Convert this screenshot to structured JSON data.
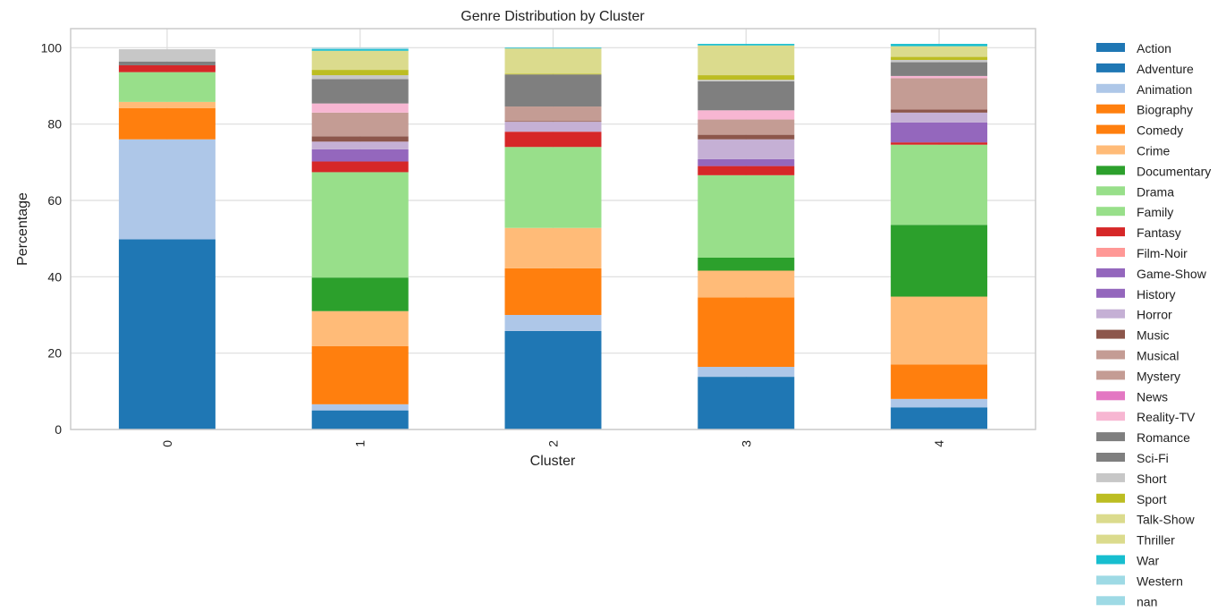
{
  "chart_data": {
    "type": "bar",
    "stacked": true,
    "title": "Genre Distribution by Cluster",
    "xlabel": "Cluster",
    "ylabel": "Percentage",
    "categories": [
      "0",
      "1",
      "2",
      "3",
      "4"
    ],
    "ylim": [
      0,
      105
    ],
    "yticks": [
      0,
      20,
      40,
      60,
      80,
      100
    ],
    "grid": true,
    "legend_position": "outside-right",
    "series": [
      {
        "name": "Action",
        "color": "#1f77b4",
        "values": [
          49.8,
          5.0,
          25.8,
          13.8,
          5.8
        ]
      },
      {
        "name": "Adventure",
        "color": "#1f77b4",
        "values": [
          0,
          0,
          0,
          0,
          0
        ]
      },
      {
        "name": "Animation",
        "color": "#aec7e8",
        "values": [
          26.2,
          1.6,
          4.2,
          2.6,
          2.2
        ]
      },
      {
        "name": "Biography",
        "color": "#ff7f0e",
        "values": [
          0,
          0,
          0,
          0,
          0
        ]
      },
      {
        "name": "Comedy",
        "color": "#ff7f0e",
        "values": [
          8.2,
          15.2,
          12.2,
          18.2,
          9.0
        ]
      },
      {
        "name": "Crime",
        "color": "#ffbb78",
        "values": [
          1.6,
          9.2,
          10.6,
          7.0,
          17.8
        ]
      },
      {
        "name": "Documentary",
        "color": "#2ca02c",
        "values": [
          0,
          8.8,
          0,
          3.4,
          18.8
        ]
      },
      {
        "name": "Drama",
        "color": "#98df8a",
        "values": [
          7.8,
          27.6,
          21.2,
          21.6,
          21.0
        ]
      },
      {
        "name": "Family",
        "color": "#98df8a",
        "values": [
          0,
          0,
          0,
          0,
          0
        ]
      },
      {
        "name": "Fantasy",
        "color": "#d62728",
        "values": [
          1.8,
          2.8,
          4.0,
          2.4,
          0.6
        ]
      },
      {
        "name": "Film-Noir",
        "color": "#ff9896",
        "values": [
          0,
          0,
          0,
          0,
          0
        ]
      },
      {
        "name": "Game-Show",
        "color": "#9467bd",
        "values": [
          0,
          0,
          0,
          0,
          0
        ]
      },
      {
        "name": "History",
        "color": "#9467bd",
        "values": [
          0,
          3.2,
          0,
          1.8,
          5.2
        ]
      },
      {
        "name": "Horror",
        "color": "#c5b0d5",
        "values": [
          0,
          2.0,
          2.6,
          5.2,
          2.6
        ]
      },
      {
        "name": "Music",
        "color": "#8c564b",
        "values": [
          0,
          1.4,
          0.2,
          1.2,
          0.8
        ]
      },
      {
        "name": "Musical",
        "color": "#c49c94",
        "values": [
          0,
          0,
          0,
          0,
          0
        ]
      },
      {
        "name": "Mystery",
        "color": "#c49c94",
        "values": [
          0,
          6.2,
          3.8,
          4.0,
          8.2
        ]
      },
      {
        "name": "News",
        "color": "#e377c2",
        "values": [
          0,
          0,
          0,
          0,
          0
        ]
      },
      {
        "name": "Reality-TV",
        "color": "#f7b6d2",
        "values": [
          0,
          2.4,
          0,
          2.4,
          0.6
        ]
      },
      {
        "name": "Romance",
        "color": "#7f7f7f",
        "values": [
          0,
          0,
          0,
          0,
          0
        ]
      },
      {
        "name": "Sci-Fi",
        "color": "#7f7f7f",
        "values": [
          1.0,
          6.4,
          8.4,
          7.6,
          3.6
        ]
      },
      {
        "name": "Short",
        "color": "#c7c7c7",
        "values": [
          3.2,
          1.0,
          0,
          0.4,
          0.6
        ]
      },
      {
        "name": "Sport",
        "color": "#bcbd22",
        "values": [
          0,
          1.4,
          0.2,
          1.2,
          0.8
        ]
      },
      {
        "name": "Talk-Show",
        "color": "#dbdb8d",
        "values": [
          0,
          0,
          0,
          0,
          0
        ]
      },
      {
        "name": "Thriller",
        "color": "#dbdb8d",
        "values": [
          0,
          5.0,
          6.6,
          7.8,
          2.8
        ]
      },
      {
        "name": "War",
        "color": "#17becf",
        "values": [
          0,
          0.4,
          0.2,
          0.4,
          0.6
        ]
      },
      {
        "name": "Western",
        "color": "#9edae5",
        "values": [
          0,
          0.4,
          0,
          0,
          0
        ]
      },
      {
        "name": "nan",
        "color": "#9edae5",
        "values": [
          0,
          0,
          0,
          0,
          0
        ]
      }
    ]
  }
}
